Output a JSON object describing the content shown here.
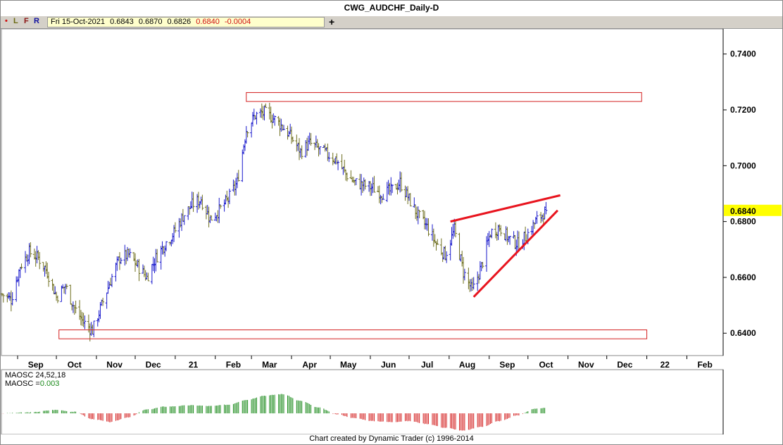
{
  "window": {
    "title": "CWG_AUDCHF_Daily-D",
    "toolbar": {
      "btn_dot": "•",
      "btn_l": "L",
      "btn_f": "F",
      "btn_r": "R",
      "quote_date": "Fri 15-Oct-2021",
      "quote_open": "0.6843",
      "quote_high": "0.6870",
      "quote_low": "0.6826",
      "quote_close": "0.6840",
      "quote_change": "-0.0004",
      "plus": "+"
    },
    "footer": "Chart created by Dynamic Trader  (c)  1996-2014"
  },
  "colors": {
    "up_bar": "#1a1acc",
    "down_bar": "#6e6e1e",
    "trend_line": "#e8141e",
    "zone_box": "#d42020",
    "price_tag": "#ffff00",
    "osc_pos": "#1a8a1a",
    "osc_neg": "#d42020"
  },
  "chart_data": [
    {
      "type": "ohlc",
      "title": "CWG_AUDCHF_Daily-D",
      "x_tick_labels": [
        "Sep",
        "Oct",
        "Nov",
        "Dec",
        "21",
        "Feb",
        "Mar",
        "Apr",
        "May",
        "Jun",
        "Jul",
        "Aug",
        "Sep",
        "Oct",
        "Nov",
        "Dec",
        "22",
        "Feb"
      ],
      "x_period": {
        "start": "2020-08-20",
        "end": "2022-02-28"
      },
      "y_ticks": [
        0.74,
        0.72,
        0.7,
        0.68,
        0.66,
        0.64
      ],
      "y_tick_labels": [
        "0.7400",
        "0.7200",
        "0.7000",
        "0.6800",
        "0.6600",
        "0.6400"
      ],
      "ylim": [
        0.633,
        0.748
      ],
      "last_price_tag": "0.6840",
      "series_close": [
        [
          "2020-08-20",
          0.654
        ],
        [
          "2020-08-27",
          0.652
        ],
        [
          "2020-09-03",
          0.664
        ],
        [
          "2020-09-10",
          0.669
        ],
        [
          "2020-09-17",
          0.667
        ],
        [
          "2020-09-24",
          0.662
        ],
        [
          "2020-10-01",
          0.653
        ],
        [
          "2020-10-08",
          0.657
        ],
        [
          "2020-10-15",
          0.649
        ],
        [
          "2020-10-22",
          0.644
        ],
        [
          "2020-10-29",
          0.641
        ],
        [
          "2020-11-05",
          0.65
        ],
        [
          "2020-11-12",
          0.659
        ],
        [
          "2020-11-19",
          0.667
        ],
        [
          "2020-11-26",
          0.668
        ],
        [
          "2020-12-03",
          0.664
        ],
        [
          "2020-12-10",
          0.66
        ],
        [
          "2020-12-17",
          0.667
        ],
        [
          "2020-12-24",
          0.672
        ],
        [
          "2020-12-31",
          0.676
        ],
        [
          "2021-01-07",
          0.682
        ],
        [
          "2021-01-14",
          0.686
        ],
        [
          "2021-01-21",
          0.688
        ],
        [
          "2021-01-28",
          0.681
        ],
        [
          "2021-02-04",
          0.684
        ],
        [
          "2021-02-11",
          0.688
        ],
        [
          "2021-02-18",
          0.694
        ],
        [
          "2021-02-25",
          0.713
        ],
        [
          "2021-03-04",
          0.718
        ],
        [
          "2021-03-11",
          0.719
        ],
        [
          "2021-03-18",
          0.717
        ],
        [
          "2021-03-25",
          0.714
        ],
        [
          "2021-04-01",
          0.71
        ],
        [
          "2021-04-08",
          0.705
        ],
        [
          "2021-04-15",
          0.708
        ],
        [
          "2021-04-22",
          0.706
        ],
        [
          "2021-04-29",
          0.704
        ],
        [
          "2021-05-06",
          0.702
        ],
        [
          "2021-05-13",
          0.697
        ],
        [
          "2021-05-20",
          0.694
        ],
        [
          "2021-05-27",
          0.693
        ],
        [
          "2021-06-03",
          0.692
        ],
        [
          "2021-06-10",
          0.69
        ],
        [
          "2021-06-17",
          0.691
        ],
        [
          "2021-06-24",
          0.694
        ],
        [
          "2021-07-01",
          0.688
        ],
        [
          "2021-07-08",
          0.682
        ],
        [
          "2021-07-15",
          0.678
        ],
        [
          "2021-07-22",
          0.672
        ],
        [
          "2021-07-29",
          0.668
        ],
        [
          "2021-08-05",
          0.677
        ],
        [
          "2021-08-12",
          0.662
        ],
        [
          "2021-08-19",
          0.655
        ],
        [
          "2021-08-26",
          0.664
        ],
        [
          "2021-09-02",
          0.676
        ],
        [
          "2021-09-09",
          0.678
        ],
        [
          "2021-09-16",
          0.674
        ],
        [
          "2021-09-23",
          0.672
        ],
        [
          "2021-09-30",
          0.675
        ],
        [
          "2021-10-07",
          0.68
        ],
        [
          "2021-10-15",
          0.684
        ]
      ],
      "annotations": [
        {
          "type": "box",
          "label": "resistance zone",
          "x0": "2021-02-25",
          "x1": "2021-12-28",
          "y0": 0.723,
          "y1": 0.7262
        },
        {
          "type": "box",
          "label": "support zone",
          "x0": "2020-10-03",
          "x1": "2022-01-01",
          "y0": 0.638,
          "y1": 0.6412
        },
        {
          "type": "line",
          "label": "upper trend line",
          "x0": "2021-08-02",
          "y0": 0.68,
          "x1": "2021-10-26",
          "y1": 0.6894
        },
        {
          "type": "line",
          "label": "lower trend line",
          "x0": "2021-08-20",
          "y0": 0.653,
          "x1": "2021-10-24",
          "y1": 0.684
        }
      ]
    },
    {
      "type": "bar",
      "title": "MAOSC 24,52,18",
      "value_label": "MAOSC =",
      "value": "0.003",
      "ylim": [
        -0.0095,
        0.011
      ],
      "series_by_month": [
        [
          "2020-08-20",
          0.0
        ],
        [
          "2020-09-10",
          0.0005
        ],
        [
          "2020-10-01",
          0.0018
        ],
        [
          "2020-10-15",
          0.0008
        ],
        [
          "2020-10-29",
          -0.003
        ],
        [
          "2020-11-12",
          -0.0045
        ],
        [
          "2020-11-26",
          -0.002
        ],
        [
          "2020-12-10",
          0.002
        ],
        [
          "2020-12-24",
          0.0035
        ],
        [
          "2021-01-14",
          0.0042
        ],
        [
          "2021-01-28",
          0.0038
        ],
        [
          "2021-02-11",
          0.0045
        ],
        [
          "2021-02-25",
          0.007
        ],
        [
          "2021-03-11",
          0.0092
        ],
        [
          "2021-03-25",
          0.01
        ],
        [
          "2021-04-08",
          0.0065
        ],
        [
          "2021-04-22",
          0.003
        ],
        [
          "2021-05-06",
          -0.0005
        ],
        [
          "2021-05-20",
          -0.0025
        ],
        [
          "2021-06-03",
          -0.004
        ],
        [
          "2021-06-17",
          -0.0045
        ],
        [
          "2021-07-01",
          -0.004
        ],
        [
          "2021-07-15",
          -0.0055
        ],
        [
          "2021-07-29",
          -0.0075
        ],
        [
          "2021-08-12",
          -0.009
        ],
        [
          "2021-08-26",
          -0.007
        ],
        [
          "2021-09-09",
          -0.004
        ],
        [
          "2021-09-23",
          -0.001
        ],
        [
          "2021-10-07",
          0.0025
        ],
        [
          "2021-10-15",
          0.0028
        ]
      ]
    }
  ]
}
